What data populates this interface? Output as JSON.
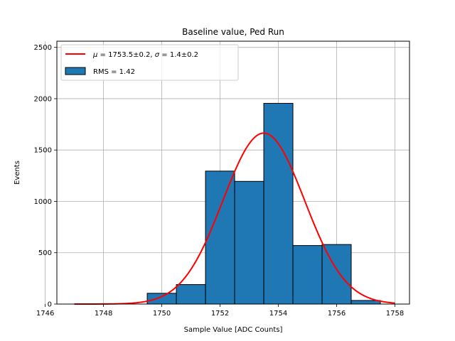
{
  "chart_data": {
    "type": "bar",
    "title": "Baseline value, Ped Run",
    "xlabel": "Sample Value [ADC Counts]",
    "ylabel": "Events",
    "xlim": [
      1746.4,
      1758.5
    ],
    "ylim": [
      0,
      2560
    ],
    "grid": true,
    "legend_placement": "upper-left",
    "xticks": [
      1746,
      1748,
      1750,
      1752,
      1754,
      1756,
      1758
    ],
    "yticks": [
      0,
      500,
      1000,
      1500,
      2000,
      2500
    ],
    "histogram": {
      "name": "RMS = 1.42",
      "color": "#1f77b4",
      "edgecolor": "#000000",
      "bins": [
        {
          "x0": 1749.5,
          "x1": 1750.5,
          "value": 105
        },
        {
          "x0": 1750.5,
          "x1": 1751.5,
          "value": 190
        },
        {
          "x0": 1751.5,
          "x1": 1752.5,
          "value": 1295
        },
        {
          "x0": 1752.5,
          "x1": 1753.5,
          "value": 1195
        },
        {
          "x0": 1753.5,
          "x1": 1754.5,
          "value": 1955
        },
        {
          "x0": 1754.5,
          "x1": 1755.5,
          "value": 570
        },
        {
          "x0": 1755.5,
          "x1": 1756.5,
          "value": 580
        },
        {
          "x0": 1756.5,
          "x1": 1757.5,
          "value": 35
        }
      ]
    },
    "fit": {
      "name": "$\\mu = 1753.5\\pm0.2$, $\\sigma = 1.4\\pm0.2$",
      "color": "#ff0000",
      "type": "gaussian",
      "amplitude": 1665,
      "mu": 1753.5,
      "sigma": 1.4,
      "x_range": [
        1747,
        1758
      ]
    }
  }
}
